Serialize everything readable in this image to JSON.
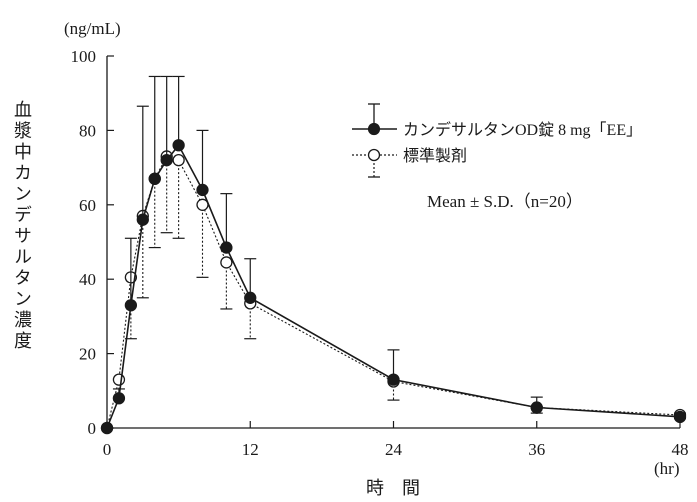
{
  "chart_data": {
    "type": "line",
    "x": [
      0,
      1,
      2,
      3,
      4,
      5,
      6,
      8,
      10,
      12,
      24,
      36,
      48
    ],
    "series": [
      {
        "name": "カンデサルタンOD錠 8 mg「EE」",
        "marker": "filled-circle",
        "line_style": "solid",
        "error_direction": "up",
        "values": [
          0,
          8,
          33,
          56,
          67,
          72,
          76,
          64,
          48.5,
          35,
          13,
          5.5,
          3
        ],
        "sd": [
          0,
          2.5,
          18,
          30.5,
          27.5,
          22.5,
          18.5,
          16,
          14.5,
          10.5,
          8,
          2.8,
          1
        ]
      },
      {
        "name": "標準製剤",
        "marker": "open-circle",
        "line_style": "dotted",
        "error_direction": "down",
        "values": [
          0,
          13,
          40.5,
          57,
          67,
          73,
          72,
          60,
          44.5,
          33.5,
          12.5,
          5.5,
          3.5
        ],
        "sd": [
          0,
          5,
          16.5,
          22,
          18.5,
          20.5,
          21,
          19.5,
          12.5,
          9.5,
          5,
          1.5,
          1
        ]
      }
    ],
    "xlabel": "時　間",
    "xunit": "(hr)",
    "ylabel": "血漿中カンデサルタン濃度",
    "yunit": "(ng/mL)",
    "xlim": [
      0,
      48
    ],
    "ylim": [
      0,
      100
    ],
    "xticks": [
      0,
      12,
      24,
      36,
      48
    ],
    "yticks": [
      0,
      20,
      40,
      60,
      80,
      100
    ],
    "annotation": "Mean ± S.D.（n=20）",
    "legend_position": "top-right",
    "grid": false
  }
}
